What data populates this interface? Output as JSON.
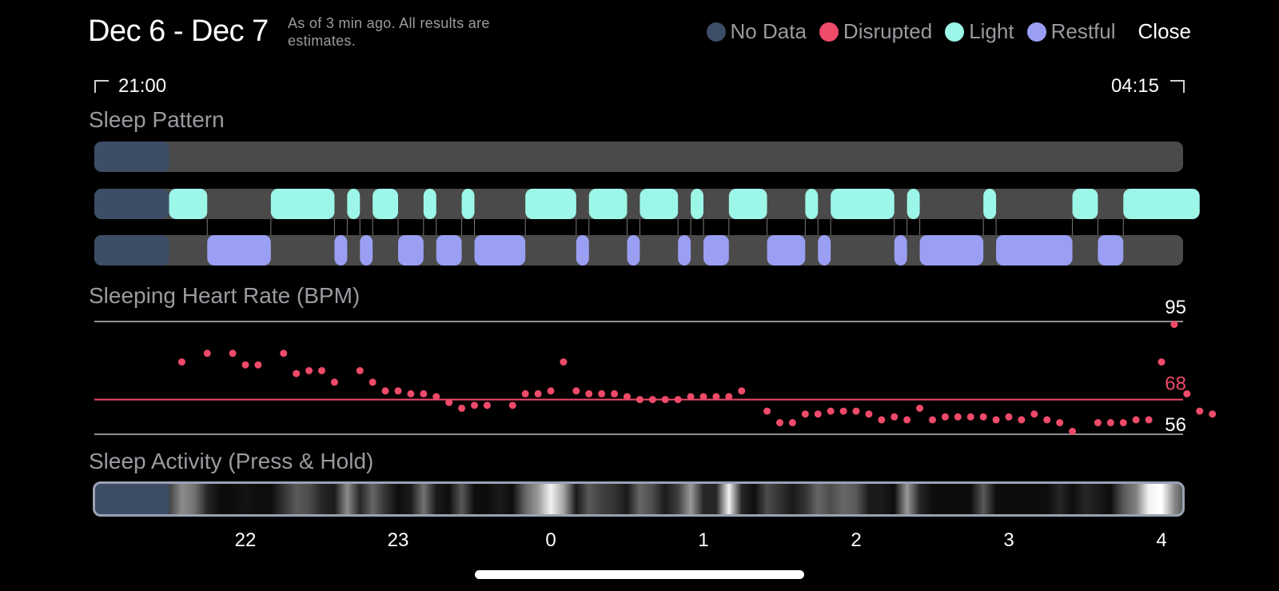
{
  "header": {
    "title": "Dec 6 - Dec 7",
    "subtitle": "As of 3 min ago. All results are estimates.",
    "close_label": "Close"
  },
  "legend": [
    {
      "label": "No Data",
      "color": "#3d4d66"
    },
    {
      "label": "Disrupted",
      "color": "#ee4a6a"
    },
    {
      "label": "Light",
      "color": "#9cf7e8"
    },
    {
      "label": "Restful",
      "color": "#9a9ff4"
    }
  ],
  "time_range": {
    "start": "21:00",
    "end": "04:15"
  },
  "sleep_pattern": {
    "title": "Sleep Pattern",
    "colors": {
      "track": "#4a4a4a",
      "no_data": "#3d4d66",
      "light": "#9cf7e8",
      "restful": "#9a9ff4"
    },
    "no_data_until": "21:30",
    "light": [
      [
        "21:30",
        "21:45"
      ],
      [
        "22:10",
        "22:35"
      ],
      [
        "22:40",
        "22:45"
      ],
      [
        "22:50",
        "23:00"
      ],
      [
        "23:10",
        "23:15"
      ],
      [
        "23:25",
        "23:30"
      ],
      [
        "23:50",
        "0:10"
      ],
      [
        "0:15",
        "0:30"
      ],
      [
        "0:35",
        "0:50"
      ],
      [
        "0:55",
        "1:00"
      ],
      [
        "1:10",
        "1:25"
      ],
      [
        "1:40",
        "1:45"
      ],
      [
        "1:50",
        "2:15"
      ],
      [
        "2:20",
        "2:25"
      ],
      [
        "2:50",
        "2:55"
      ],
      [
        "3:25",
        "3:35"
      ],
      [
        "3:45",
        "4:15"
      ]
    ],
    "restful": [
      [
        "21:45",
        "22:10"
      ],
      [
        "22:35",
        "22:40"
      ],
      [
        "22:45",
        "22:50"
      ],
      [
        "23:00",
        "23:10"
      ],
      [
        "23:15",
        "23:25"
      ],
      [
        "23:30",
        "23:50"
      ],
      [
        "0:10",
        "0:15"
      ],
      [
        "0:30",
        "0:35"
      ],
      [
        "0:50",
        "0:55"
      ],
      [
        "1:00",
        "1:10"
      ],
      [
        "1:25",
        "1:40"
      ],
      [
        "1:45",
        "1:50"
      ],
      [
        "2:15",
        "2:20"
      ],
      [
        "2:25",
        "2:50"
      ],
      [
        "2:55",
        "3:25"
      ],
      [
        "3:35",
        "3:45"
      ]
    ]
  },
  "heart_rate": {
    "title": "Sleeping Heart Rate (BPM)",
    "max_label": "95",
    "avg_label": "68",
    "min_label": "56",
    "colors": {
      "point": "#ee4a6a",
      "avg_line": "#ee4a6a",
      "grid": "#8e8e93"
    },
    "points": [
      [
        "21:35",
        81
      ],
      [
        "21:45",
        84
      ],
      [
        "21:55",
        84
      ],
      [
        "22:00",
        80
      ],
      [
        "22:05",
        80
      ],
      [
        "22:15",
        84
      ],
      [
        "22:20",
        77
      ],
      [
        "22:25",
        78
      ],
      [
        "22:30",
        78
      ],
      [
        "22:35",
        74
      ],
      [
        "22:45",
        78
      ],
      [
        "22:50",
        74
      ],
      [
        "22:55",
        71
      ],
      [
        "23:00",
        71
      ],
      [
        "23:05",
        70
      ],
      [
        "23:10",
        70
      ],
      [
        "23:15",
        69
      ],
      [
        "23:20",
        67
      ],
      [
        "23:25",
        65
      ],
      [
        "23:30",
        66
      ],
      [
        "23:35",
        66
      ],
      [
        "23:45",
        66
      ],
      [
        "23:50",
        70
      ],
      [
        "23:55",
        70
      ],
      [
        "0:00",
        71
      ],
      [
        "0:05",
        81
      ],
      [
        "0:10",
        71
      ],
      [
        "0:15",
        70
      ],
      [
        "0:20",
        70
      ],
      [
        "0:25",
        70
      ],
      [
        "0:30",
        69
      ],
      [
        "0:35",
        68
      ],
      [
        "0:40",
        68
      ],
      [
        "0:45",
        68
      ],
      [
        "0:50",
        68
      ],
      [
        "0:55",
        69
      ],
      [
        "1:00",
        69
      ],
      [
        "1:05",
        69
      ],
      [
        "1:10",
        69
      ],
      [
        "1:15",
        71
      ],
      [
        "1:25",
        64
      ],
      [
        "1:30",
        60
      ],
      [
        "1:35",
        60
      ],
      [
        "1:40",
        63
      ],
      [
        "1:45",
        63
      ],
      [
        "1:50",
        64
      ],
      [
        "1:55",
        64
      ],
      [
        "2:00",
        64
      ],
      [
        "2:05",
        63
      ],
      [
        "2:10",
        61
      ],
      [
        "2:15",
        62
      ],
      [
        "2:20",
        61
      ],
      [
        "2:25",
        65
      ],
      [
        "2:30",
        61
      ],
      [
        "2:35",
        62
      ],
      [
        "2:40",
        62
      ],
      [
        "2:45",
        62
      ],
      [
        "2:50",
        62
      ],
      [
        "2:55",
        61
      ],
      [
        "3:00",
        62
      ],
      [
        "3:05",
        61
      ],
      [
        "3:10",
        63
      ],
      [
        "3:15",
        61
      ],
      [
        "3:20",
        60
      ],
      [
        "3:25",
        57
      ],
      [
        "3:35",
        60
      ],
      [
        "3:40",
        60
      ],
      [
        "3:45",
        60
      ],
      [
        "3:50",
        61
      ],
      [
        "3:55",
        61
      ],
      [
        "4:00",
        81
      ],
      [
        "4:05",
        94
      ],
      [
        "4:10",
        70
      ],
      [
        "4:15",
        64
      ],
      [
        "4:20",
        63
      ]
    ]
  },
  "sleep_activity": {
    "title": "Sleep Activity (Press & Hold)",
    "ticks": [
      "22",
      "23",
      "0",
      "1",
      "2",
      "3",
      "4"
    ],
    "colors": {
      "no_data": "#3d4d66",
      "border": "#9aa2b4"
    },
    "no_data_until": "21:30",
    "intensity": [
      [
        "21:30",
        0.25
      ],
      [
        "21:35",
        0.55
      ],
      [
        "21:40",
        0.45
      ],
      [
        "21:45",
        0.15
      ],
      [
        "21:50",
        0.05
      ],
      [
        "21:55",
        0.05
      ],
      [
        "22:00",
        0.08
      ],
      [
        "22:05",
        0.05
      ],
      [
        "22:10",
        0.05
      ],
      [
        "22:15",
        0.2
      ],
      [
        "22:20",
        0.35
      ],
      [
        "22:25",
        0.3
      ],
      [
        "22:30",
        0.15
      ],
      [
        "22:35",
        0.1
      ],
      [
        "22:40",
        0.55
      ],
      [
        "22:45",
        0.15
      ],
      [
        "22:50",
        0.4
      ],
      [
        "22:55",
        0.2
      ],
      [
        "23:00",
        0.05
      ],
      [
        "23:05",
        0.1
      ],
      [
        "23:10",
        0.45
      ],
      [
        "23:15",
        0.1
      ],
      [
        "23:20",
        0.05
      ],
      [
        "23:25",
        0.35
      ],
      [
        "23:30",
        0.05
      ],
      [
        "23:35",
        0.05
      ],
      [
        "23:40",
        0.1
      ],
      [
        "23:45",
        0.05
      ],
      [
        "23:50",
        0.4
      ],
      [
        "23:55",
        0.6
      ],
      [
        "0:00",
        0.95
      ],
      [
        "0:05",
        0.65
      ],
      [
        "0:10",
        0.1
      ],
      [
        "0:15",
        0.35
      ],
      [
        "0:20",
        0.25
      ],
      [
        "0:25",
        0.2
      ],
      [
        "0:30",
        0.1
      ],
      [
        "0:35",
        0.4
      ],
      [
        "0:40",
        0.3
      ],
      [
        "0:45",
        0.1
      ],
      [
        "0:50",
        0.25
      ],
      [
        "0:55",
        0.6
      ],
      [
        "1:00",
        0.15
      ],
      [
        "1:05",
        0.15
      ],
      [
        "1:10",
        0.95
      ],
      [
        "1:15",
        0.15
      ],
      [
        "1:20",
        0.05
      ],
      [
        "1:25",
        0.3
      ],
      [
        "1:30",
        0.2
      ],
      [
        "1:35",
        0.1
      ],
      [
        "1:40",
        0.2
      ],
      [
        "1:45",
        0.4
      ],
      [
        "1:50",
        0.3
      ],
      [
        "1:55",
        0.4
      ],
      [
        "2:00",
        0.35
      ],
      [
        "2:05",
        0.1
      ],
      [
        "2:10",
        0.1
      ],
      [
        "2:15",
        0.05
      ],
      [
        "2:20",
        0.6
      ],
      [
        "2:25",
        0.15
      ],
      [
        "2:30",
        0.05
      ],
      [
        "2:35",
        0.05
      ],
      [
        "2:40",
        0.05
      ],
      [
        "2:45",
        0.05
      ],
      [
        "2:50",
        0.35
      ],
      [
        "2:55",
        0.05
      ],
      [
        "3:00",
        0.05
      ],
      [
        "3:05",
        0.05
      ],
      [
        "3:10",
        0.05
      ],
      [
        "3:15",
        0.05
      ],
      [
        "3:20",
        0.15
      ],
      [
        "3:25",
        0.05
      ],
      [
        "3:30",
        0.15
      ],
      [
        "3:35",
        0.1
      ],
      [
        "3:40",
        0.05
      ],
      [
        "3:45",
        0.35
      ],
      [
        "3:50",
        0.5
      ],
      [
        "3:55",
        0.95
      ],
      [
        "4:00",
        1.0
      ],
      [
        "4:05",
        0.55
      ],
      [
        "4:10",
        0.25
      ],
      [
        "4:15",
        0.35
      ]
    ]
  }
}
